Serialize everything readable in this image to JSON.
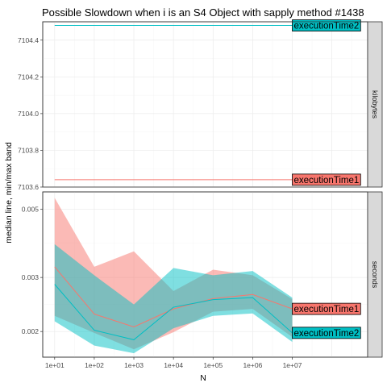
{
  "chart_data": {
    "type": "line",
    "title": "Possible Slowdown when i is an S4 Object with sapply method #1438",
    "xlabel": "N",
    "ylabel": "median line, min/max band",
    "x_scale": "log10",
    "x": [
      10,
      100,
      1000,
      10000,
      100000,
      1000000,
      10000000
    ],
    "x_tick_labels": [
      "1e+01",
      "1e+02",
      "1e+03",
      "1e+04",
      "1e+05",
      "1e+06",
      "1e+07"
    ],
    "xlim": [
      5,
      800000000
    ],
    "colors": {
      "executionTime1": "#f8766d",
      "executionTime2": "#00bfc4"
    },
    "panels": [
      {
        "strip": "kilobytes",
        "ylim": [
          7103.6,
          7104.5
        ],
        "y_ticks": [
          7103.6,
          7103.8,
          7104.0,
          7104.2,
          7104.4
        ],
        "y_tick_labels": [
          "7103.6",
          "7103.8",
          "7104.0",
          "7104.2",
          "7104.4"
        ],
        "series": [
          {
            "name": "executionTime1",
            "label": "executionTime1",
            "median": [
              7103.64,
              7103.64,
              7103.64,
              7103.64,
              7103.64,
              7103.64,
              7103.64
            ],
            "min": [
              7103.64,
              7103.64,
              7103.64,
              7103.64,
              7103.64,
              7103.64,
              7103.64
            ],
            "max": [
              7103.64,
              7103.64,
              7103.64,
              7103.64,
              7103.64,
              7103.64,
              7103.64
            ]
          },
          {
            "name": "executionTime2",
            "label": "executionTime2",
            "median": [
              7104.48,
              7104.48,
              7104.48,
              7104.48,
              7104.48,
              7104.48,
              7104.48
            ],
            "min": [
              7104.48,
              7104.48,
              7104.48,
              7104.48,
              7104.48,
              7104.48,
              7104.48
            ],
            "max": [
              7104.48,
              7104.48,
              7104.48,
              7104.48,
              7104.48,
              7104.48,
              7104.48
            ]
          }
        ]
      },
      {
        "strip": "seconds",
        "y_log": true,
        "ylim": [
          0.00165,
          0.0057
        ],
        "y_ticks": [
          0.002,
          0.003,
          0.005
        ],
        "y_tick_labels": [
          "0.002",
          "0.003",
          "0.005"
        ],
        "series": [
          {
            "name": "executionTime1",
            "label": "executionTime1",
            "median": [
              0.00325,
              0.00228,
              0.00207,
              0.00237,
              0.00256,
              0.00264,
              0.00237
            ],
            "min": [
              0.00225,
              0.00198,
              0.00175,
              0.00199,
              0.00232,
              0.00237,
              0.00192
            ],
            "max": [
              0.00545,
              0.00325,
              0.00365,
              0.00271,
              0.00318,
              0.00305,
              0.00255
            ]
          },
          {
            "name": "executionTime2",
            "label": "executionTime2",
            "median": [
              0.00285,
              0.00202,
              0.00188,
              0.0024,
              0.00254,
              0.00258,
              0.00198
            ],
            "min": [
              0.00216,
              0.0018,
              0.0017,
              0.00205,
              0.00225,
              0.00229,
              0.00185
            ],
            "max": [
              0.00385,
              0.00305,
              0.00245,
              0.00322,
              0.00305,
              0.00315,
              0.00258
            ]
          }
        ]
      }
    ]
  }
}
